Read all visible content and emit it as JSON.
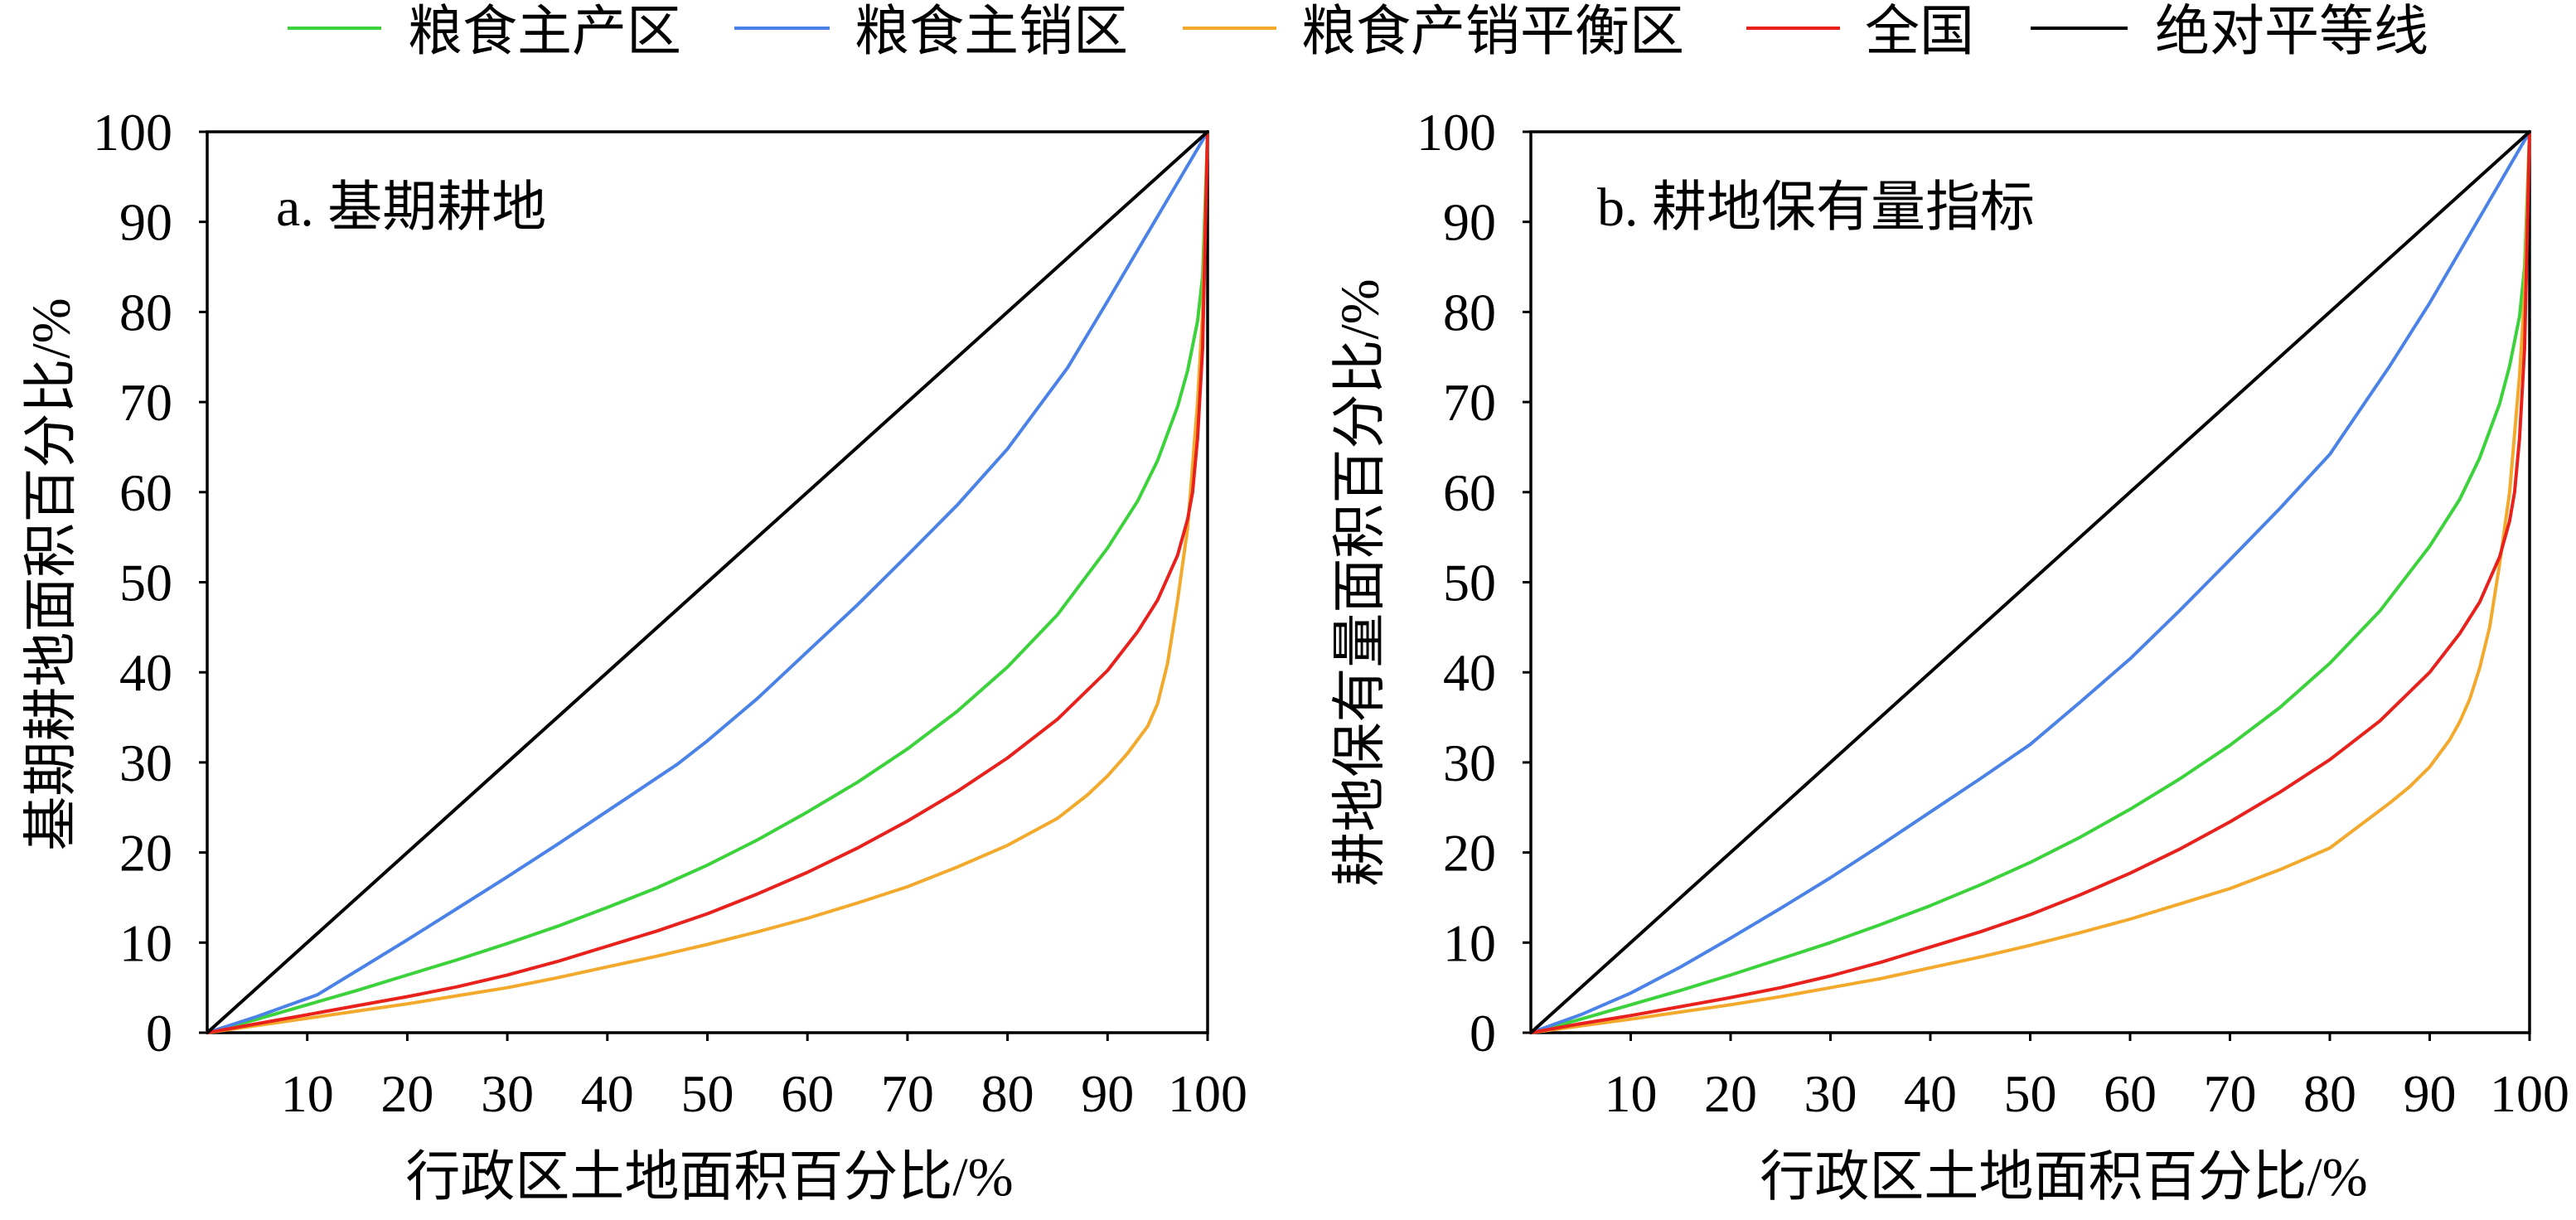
{
  "chart_data": [
    {
      "type": "line",
      "title": "a. 基期耕地",
      "xlabel": "行政区土地面积百分比/%",
      "ylabel": "基期耕地面积百分比/%",
      "xlim": [
        0,
        100
      ],
      "ylim": [
        0,
        100
      ],
      "xticks": [
        10,
        20,
        30,
        40,
        50,
        60,
        70,
        80,
        90,
        100
      ],
      "yticks": [
        0,
        10,
        20,
        30,
        40,
        50,
        60,
        70,
        80,
        90,
        100
      ],
      "grid": false,
      "legend_position": "top",
      "series": [
        {
          "name": "粮食主产区",
          "color": "#3cd23c",
          "x": [
            0,
            5,
            10,
            15,
            20,
            25,
            30,
            35,
            40,
            45,
            50,
            55,
            60,
            65,
            70,
            75,
            80,
            85,
            90,
            93,
            95,
            97,
            98,
            99,
            99.5,
            100
          ],
          "y": [
            0,
            1.5,
            3.1,
            4.7,
            6.4,
            8.1,
            9.9,
            11.8,
            13.9,
            16.1,
            18.6,
            21.4,
            24.5,
            27.8,
            31.5,
            35.7,
            40.6,
            46.4,
            53.8,
            59,
            63.5,
            69.5,
            73.5,
            79,
            84,
            100
          ]
        },
        {
          "name": "粮食主销区",
          "color": "#4b82e8",
          "x": [
            0,
            5,
            11,
            15,
            20,
            25,
            30,
            35,
            40,
            47,
            50,
            55,
            60,
            65,
            70,
            75,
            80,
            86,
            90,
            95,
            100
          ],
          "y": [
            0,
            1.8,
            4.2,
            6.9,
            10.3,
            13.8,
            17.3,
            20.9,
            24.6,
            29.8,
            32.4,
            37.1,
            42.3,
            47.5,
            53,
            58.6,
            64.8,
            73.8,
            81.2,
            90.6,
            100
          ]
        },
        {
          "name": "粮食产销平衡区",
          "color": "#f2a92c",
          "x": [
            0,
            5,
            10,
            15,
            20,
            25,
            30,
            35,
            40,
            45,
            50,
            55,
            60,
            65,
            70,
            75,
            80,
            85,
            88,
            90,
            92,
            94,
            95,
            96,
            97,
            98,
            99,
            99.5,
            100
          ],
          "y": [
            0,
            0.8,
            1.6,
            2.4,
            3.2,
            4.1,
            5,
            6.1,
            7.3,
            8.5,
            9.8,
            11.2,
            12.7,
            14.4,
            16.2,
            18.4,
            20.8,
            23.8,
            26.4,
            28.5,
            31,
            34,
            36.5,
            41,
            48,
            56,
            70,
            80,
            100
          ]
        },
        {
          "name": "全国",
          "color": "#e8211c",
          "x": [
            0,
            5,
            10,
            15,
            20,
            25,
            30,
            35,
            40,
            45,
            50,
            55,
            60,
            65,
            70,
            75,
            80,
            85,
            90,
            93,
            95,
            97,
            98,
            98.5,
            99,
            99.5,
            100
          ],
          "y": [
            0,
            1,
            2,
            3,
            4,
            5.1,
            6.4,
            7.9,
            9.6,
            11.3,
            13.2,
            15.4,
            17.8,
            20.5,
            23.5,
            26.8,
            30.5,
            34.8,
            40.2,
            44.5,
            48,
            53,
            57,
            60,
            66,
            76,
            100
          ]
        },
        {
          "name": "绝对平等线",
          "color": "#000000",
          "x": [
            0,
            100
          ],
          "y": [
            0,
            100
          ]
        }
      ]
    },
    {
      "type": "line",
      "title": "b. 耕地保有量指标",
      "xlabel": "行政区土地面积百分比/%",
      "ylabel": "耕地保有量面积百分比/%",
      "xlim": [
        0,
        100
      ],
      "ylim": [
        0,
        100
      ],
      "xticks": [
        10,
        20,
        30,
        40,
        50,
        60,
        70,
        80,
        90,
        100
      ],
      "yticks": [
        0,
        10,
        20,
        30,
        40,
        50,
        60,
        70,
        80,
        90,
        100
      ],
      "grid": false,
      "legend_position": "top",
      "series": [
        {
          "name": "粮食主产区",
          "color": "#3cd23c",
          "x": [
            0,
            5,
            10,
            15,
            20,
            25,
            30,
            35,
            40,
            45,
            50,
            55,
            60,
            65,
            70,
            75,
            80,
            85,
            90,
            93,
            95,
            97,
            98,
            99,
            99.5,
            100
          ],
          "y": [
            0,
            1.5,
            3.1,
            4.7,
            6.4,
            8.2,
            10,
            12,
            14.1,
            16.4,
            18.9,
            21.7,
            24.8,
            28.2,
            31.9,
            36.1,
            41,
            46.8,
            54,
            59.2,
            63.8,
            69.8,
            74,
            79.5,
            85,
            100
          ]
        },
        {
          "name": "粮食主销区",
          "color": "#4b82e8",
          "x": [
            0,
            5,
            10,
            15,
            20,
            25,
            30,
            35,
            40,
            45,
            50,
            55,
            60,
            65,
            70,
            75,
            80,
            86,
            90,
            95,
            100
          ],
          "y": [
            0,
            2,
            4.4,
            7.3,
            10.5,
            13.8,
            17.2,
            20.8,
            24.5,
            28.2,
            32,
            36.7,
            41.5,
            46.9,
            52.5,
            58.2,
            64.2,
            74,
            81,
            90.5,
            100
          ]
        },
        {
          "name": "粮食产销平衡区",
          "color": "#f2a92c",
          "x": [
            0,
            5,
            10,
            15,
            20,
            25,
            30,
            35,
            40,
            45,
            50,
            55,
            60,
            65,
            70,
            75,
            80,
            86,
            88,
            90,
            92,
            93,
            94,
            95,
            96,
            97,
            98,
            99,
            99.5,
            100
          ],
          "y": [
            0,
            0.75,
            1.5,
            2.3,
            3.1,
            4,
            5,
            6,
            7.2,
            8.4,
            9.7,
            11.1,
            12.6,
            14.3,
            16,
            18.1,
            20.5,
            25.5,
            27.3,
            29.5,
            32.5,
            34.5,
            37,
            40.5,
            45,
            52,
            60,
            73,
            82,
            100
          ]
        },
        {
          "name": "全国",
          "color": "#e8211c",
          "x": [
            0,
            5,
            10,
            15,
            20,
            25,
            30,
            35,
            40,
            45,
            50,
            55,
            60,
            65,
            70,
            75,
            80,
            85,
            90,
            93,
            95,
            97,
            98,
            98.5,
            99,
            99.5,
            100
          ],
          "y": [
            0,
            1,
            1.9,
            2.9,
            3.9,
            5,
            6.3,
            7.8,
            9.5,
            11.2,
            13.1,
            15.3,
            17.7,
            20.4,
            23.4,
            26.7,
            30.3,
            34.6,
            40,
            44.3,
            47.8,
            52.8,
            56.8,
            60,
            66,
            76,
            100
          ]
        },
        {
          "name": "绝对平等线",
          "color": "#000000",
          "x": [
            0,
            100
          ],
          "y": [
            0,
            100
          ]
        }
      ]
    }
  ]
}
